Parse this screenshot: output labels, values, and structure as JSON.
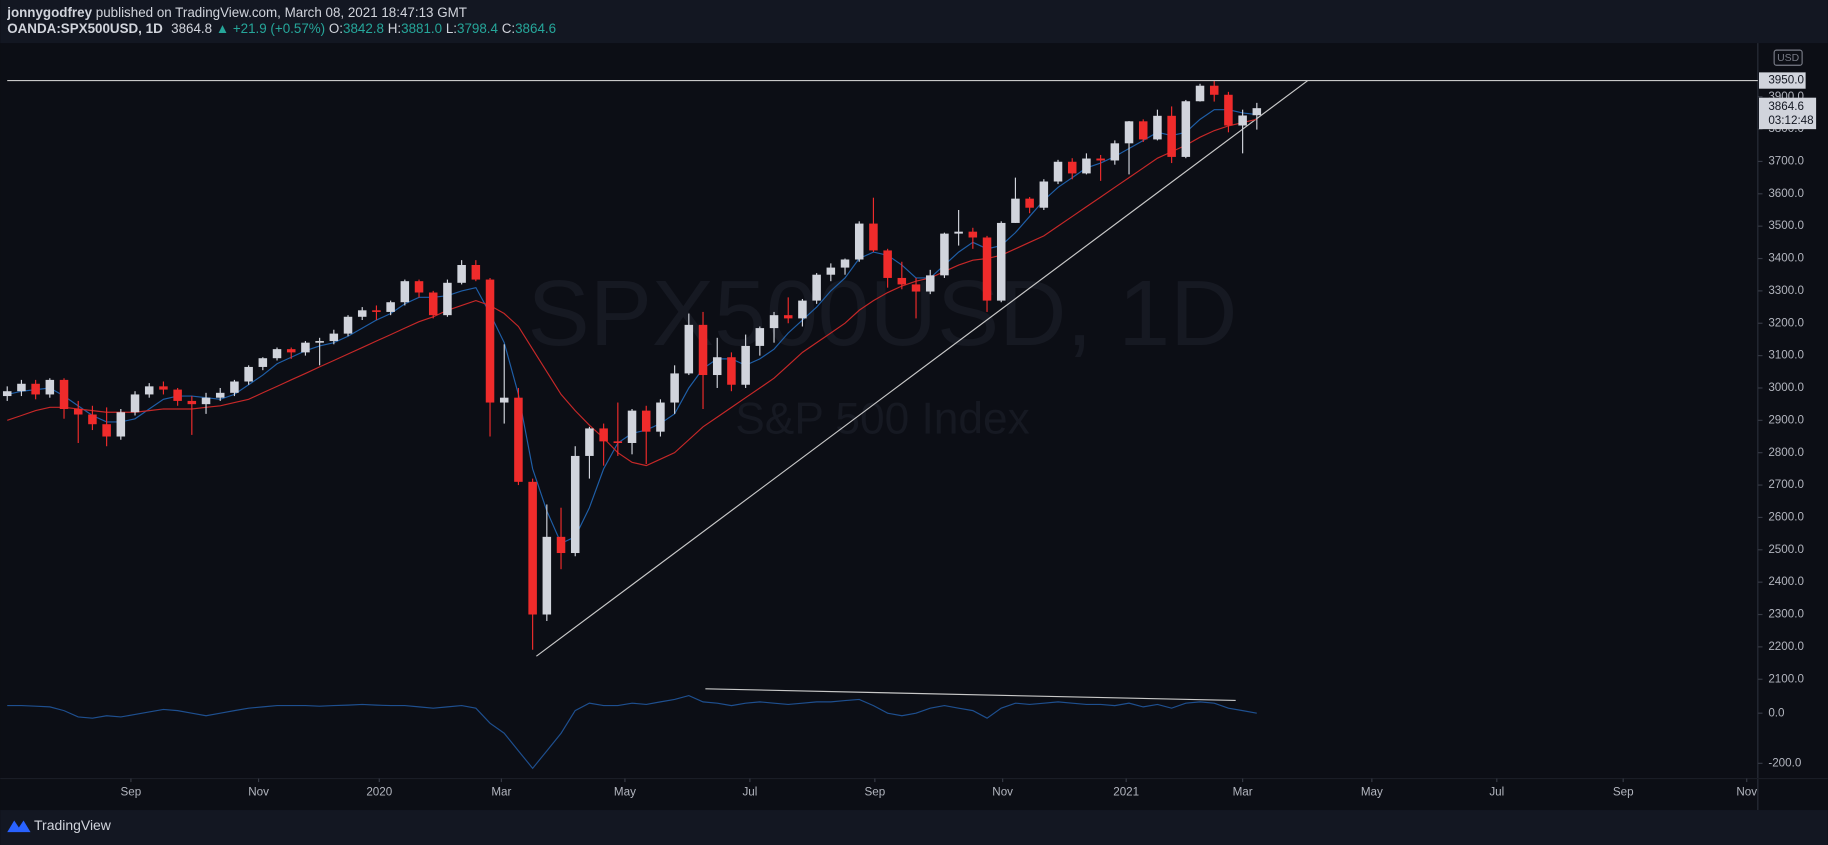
{
  "header": {
    "author": "jonnygodfrey",
    "published": "published on TradingView.com, March 08, 2021 18:47:13 GMT",
    "symbol": "OANDA:SPX500USD, 1D",
    "price": "3864.8",
    "change": "▲ +21.9 (+0.57%)",
    "o_label": "O:",
    "o": "3842.8",
    "h_label": "H:",
    "h": "3881.0",
    "l_label": "L:",
    "l": "3798.4",
    "c_label": "C:",
    "c": "3864.6"
  },
  "footer": {
    "brand": "TradingView"
  },
  "chart_data": {
    "type": "candlestick",
    "watermark": "SPX500USD, 1D",
    "watermark_subtitle": "S&P 500 Index",
    "currency": "USD",
    "countdown": "03:12:48",
    "up_color": "#d1d4dc",
    "down_color": "#ef2b2b",
    "xlim": [
      0,
      123.2
    ],
    "xticks": [
      {
        "value": 8.71,
        "label": "Sep"
      },
      {
        "value": 17.7,
        "label": "Nov"
      },
      {
        "value": 26.2,
        "label": "2020"
      },
      {
        "value": 34.8,
        "label": "Mar"
      },
      {
        "value": 43.5,
        "label": "May"
      },
      {
        "value": 52.3,
        "label": "Jul"
      },
      {
        "value": 61.1,
        "label": "Sep"
      },
      {
        "value": 70.1,
        "label": "Nov"
      },
      {
        "value": 78.8,
        "label": "2021"
      },
      {
        "value": 87.0,
        "label": "Mar"
      },
      {
        "value": 96.1,
        "label": "May"
      },
      {
        "value": 104.9,
        "label": "Jul"
      },
      {
        "value": 113.8,
        "label": "Sep"
      },
      {
        "value": 122.5,
        "label": "Nov"
      }
    ],
    "ylim": [
      2110,
      4062
    ],
    "yticks": [
      {
        "value": 2100,
        "label": "2100.0"
      },
      {
        "value": 2200,
        "label": "2200.0"
      },
      {
        "value": 2300,
        "label": "2300.0"
      },
      {
        "value": 2400,
        "label": "2400.0"
      },
      {
        "value": 2500,
        "label": "2500.0"
      },
      {
        "value": 2600,
        "label": "2600.0"
      },
      {
        "value": 2700,
        "label": "2700.0"
      },
      {
        "value": 2800,
        "label": "2800.0"
      },
      {
        "value": 2900,
        "label": "2900.0"
      },
      {
        "value": 3000,
        "label": "3000.0"
      },
      {
        "value": 3100,
        "label": "3100.0"
      },
      {
        "value": 3200,
        "label": "3200.0"
      },
      {
        "value": 3300,
        "label": "3300.0"
      },
      {
        "value": 3400,
        "label": "3400.0"
      },
      {
        "value": 3500,
        "label": "3500.0"
      },
      {
        "value": 3600,
        "label": "3600.0"
      },
      {
        "value": 3700,
        "label": "3700.0"
      },
      {
        "value": 3800,
        "label": "3800.0"
      },
      {
        "value": 3900,
        "label": "3900.0"
      }
    ],
    "y2lim": [
      -270,
      125
    ],
    "y2ticks": [
      {
        "value": 0,
        "label": "0.0"
      },
      {
        "value": -200,
        "label": "-200.0"
      }
    ],
    "hline": {
      "value": 3950,
      "label": "3950.0"
    },
    "ohlc": [
      [
        2975,
        3005,
        2960,
        2990
      ],
      [
        2990,
        3025,
        2975,
        3013
      ],
      [
        3013,
        3025,
        2965,
        2980
      ],
      [
        2980,
        3030,
        2970,
        3025
      ],
      [
        3025,
        3030,
        2905,
        2935
      ],
      [
        2935,
        2960,
        2830,
        2918
      ],
      [
        2918,
        2945,
        2870,
        2888
      ],
      [
        2888,
        2940,
        2820,
        2850
      ],
      [
        2850,
        2935,
        2840,
        2925
      ],
      [
        2925,
        2990,
        2915,
        2980
      ],
      [
        2980,
        3015,
        2970,
        3005
      ],
      [
        3005,
        3020,
        2980,
        2995
      ],
      [
        2995,
        3000,
        2945,
        2960
      ],
      [
        2960,
        2975,
        2855,
        2950
      ],
      [
        2950,
        2985,
        2920,
        2970
      ],
      [
        2970,
        3000,
        2960,
        2985
      ],
      [
        2985,
        3025,
        2975,
        3020
      ],
      [
        3020,
        3070,
        3010,
        3065
      ],
      [
        3065,
        3095,
        3055,
        3092
      ],
      [
        3092,
        3125,
        3085,
        3120
      ],
      [
        3120,
        3125,
        3090,
        3110
      ],
      [
        3110,
        3145,
        3100,
        3140
      ],
      [
        3140,
        3155,
        3070,
        3145
      ],
      [
        3145,
        3180,
        3135,
        3168
      ],
      [
        3168,
        3225,
        3160,
        3220
      ],
      [
        3220,
        3250,
        3210,
        3240
      ],
      [
        3240,
        3255,
        3210,
        3235
      ],
      [
        3235,
        3270,
        3225,
        3265
      ],
      [
        3265,
        3335,
        3255,
        3330
      ],
      [
        3330,
        3335,
        3280,
        3295
      ],
      [
        3295,
        3300,
        3215,
        3225
      ],
      [
        3225,
        3335,
        3220,
        3325
      ],
      [
        3325,
        3395,
        3320,
        3380
      ],
      [
        3380,
        3395,
        3330,
        3335
      ],
      [
        3335,
        3340,
        2850,
        2955
      ],
      [
        2955,
        3135,
        2890,
        2970
      ],
      [
        2970,
        3000,
        2700,
        2710
      ],
      [
        2710,
        2720,
        2191,
        2300
      ],
      [
        2300,
        2640,
        2280,
        2540
      ],
      [
        2540,
        2630,
        2440,
        2490
      ],
      [
        2490,
        2820,
        2480,
        2790
      ],
      [
        2790,
        2880,
        2720,
        2875
      ],
      [
        2875,
        2890,
        2760,
        2835
      ],
      [
        2835,
        2955,
        2790,
        2830
      ],
      [
        2830,
        2935,
        2795,
        2930
      ],
      [
        2930,
        2945,
        2765,
        2865
      ],
      [
        2865,
        2965,
        2850,
        2955
      ],
      [
        2955,
        3070,
        2920,
        3045
      ],
      [
        3045,
        3230,
        3040,
        3195
      ],
      [
        3195,
        3235,
        2935,
        3040
      ],
      [
        3040,
        3155,
        3000,
        3095
      ],
      [
        3095,
        3110,
        2990,
        3010
      ],
      [
        3010,
        3165,
        3000,
        3130
      ],
      [
        3130,
        3190,
        3100,
        3185
      ],
      [
        3185,
        3235,
        3140,
        3225
      ],
      [
        3225,
        3280,
        3200,
        3215
      ],
      [
        3215,
        3275,
        3190,
        3270
      ],
      [
        3270,
        3355,
        3260,
        3350
      ],
      [
        3350,
        3385,
        3330,
        3372
      ],
      [
        3372,
        3400,
        3350,
        3397
      ],
      [
        3397,
        3515,
        3390,
        3508
      ],
      [
        3508,
        3588,
        3420,
        3425
      ],
      [
        3425,
        3430,
        3310,
        3340
      ],
      [
        3340,
        3390,
        3305,
        3320
      ],
      [
        3320,
        3340,
        3215,
        3298
      ],
      [
        3298,
        3365,
        3290,
        3348
      ],
      [
        3348,
        3480,
        3340,
        3477
      ],
      [
        3477,
        3550,
        3440,
        3483
      ],
      [
        3483,
        3495,
        3430,
        3465
      ],
      [
        3465,
        3470,
        3235,
        3270
      ],
      [
        3270,
        3515,
        3265,
        3510
      ],
      [
        3510,
        3650,
        3510,
        3585
      ],
      [
        3585,
        3590,
        3540,
        3557
      ],
      [
        3557,
        3645,
        3550,
        3638
      ],
      [
        3638,
        3705,
        3630,
        3699
      ],
      [
        3699,
        3710,
        3645,
        3663
      ],
      [
        3663,
        3725,
        3660,
        3709
      ],
      [
        3709,
        3720,
        3640,
        3703
      ],
      [
        3703,
        3765,
        3690,
        3756
      ],
      [
        3756,
        3825,
        3660,
        3824
      ],
      [
        3824,
        3830,
        3760,
        3768
      ],
      [
        3768,
        3860,
        3765,
        3841
      ],
      [
        3841,
        3870,
        3695,
        3714
      ],
      [
        3714,
        3890,
        3710,
        3886
      ],
      [
        3886,
        3940,
        3885,
        3934
      ],
      [
        3934,
        3950,
        3885,
        3906
      ],
      [
        3906,
        3915,
        3790,
        3811
      ],
      [
        3811,
        3860,
        3725,
        3842
      ],
      [
        3842.8,
        3881,
        3798.4,
        3864.6
      ]
    ],
    "series": [
      {
        "color": "#1f5fa8",
        "values": [
          2980,
          2990,
          2995,
          3000,
          2975,
          2945,
          2915,
          2895,
          2895,
          2905,
          2935,
          2965,
          2975,
          2975,
          2970,
          2965,
          2980,
          3010,
          3040,
          3075,
          3095,
          3115,
          3130,
          3140,
          3160,
          3185,
          3210,
          3230,
          3260,
          3280,
          3280,
          3285,
          3300,
          3310,
          3230,
          3140,
          2980,
          2750,
          2620,
          2520,
          2540,
          2630,
          2750,
          2830,
          2860,
          2870,
          2890,
          2920,
          3000,
          3060,
          3090,
          3090,
          3070,
          3090,
          3120,
          3170,
          3210,
          3250,
          3300,
          3340,
          3400,
          3420,
          3410,
          3380,
          3340,
          3340,
          3380,
          3420,
          3450,
          3430,
          3440,
          3480,
          3530,
          3580,
          3620,
          3650,
          3680,
          3695,
          3715,
          3740,
          3765,
          3790,
          3780,
          3790,
          3830,
          3860,
          3860,
          3850,
          3845
        ]
      },
      {
        "color": "#c62828",
        "values": [
          2900,
          2915,
          2930,
          2940,
          2940,
          2935,
          2930,
          2925,
          2925,
          2925,
          2930,
          2935,
          2935,
          2935,
          2940,
          2945,
          2955,
          2965,
          2985,
          3005,
          3025,
          3045,
          3065,
          3085,
          3105,
          3125,
          3145,
          3165,
          3185,
          3205,
          3220,
          3240,
          3255,
          3270,
          3255,
          3230,
          3190,
          3120,
          3050,
          2980,
          2930,
          2885,
          2845,
          2800,
          2770,
          2760,
          2780,
          2800,
          2840,
          2880,
          2910,
          2940,
          2970,
          3000,
          3030,
          3070,
          3110,
          3140,
          3170,
          3200,
          3240,
          3270,
          3295,
          3315,
          3330,
          3340,
          3360,
          3380,
          3395,
          3400,
          3410,
          3430,
          3450,
          3470,
          3500,
          3530,
          3560,
          3590,
          3620,
          3650,
          3680,
          3710,
          3730,
          3750,
          3775,
          3795,
          3810,
          3820,
          3830
        ]
      },
      {
        "color": "#1e4f8f",
        "axis": "y2",
        "values": [
          30,
          30,
          28,
          25,
          10,
          -15,
          -20,
          -10,
          -15,
          -5,
          5,
          15,
          10,
          0,
          -10,
          0,
          10,
          20,
          25,
          30,
          30,
          30,
          28,
          30,
          32,
          35,
          32,
          30,
          30,
          25,
          20,
          25,
          30,
          20,
          -40,
          -80,
          -150,
          -220,
          -150,
          -80,
          10,
          40,
          30,
          30,
          40,
          35,
          45,
          55,
          70,
          45,
          40,
          30,
          40,
          45,
          40,
          35,
          40,
          45,
          45,
          50,
          55,
          30,
          0,
          -10,
          0,
          20,
          30,
          20,
          10,
          -20,
          20,
          40,
          35,
          40,
          45,
          40,
          35,
          35,
          30,
          40,
          25,
          35,
          20,
          40,
          45,
          40,
          20,
          10,
          0
        ]
      }
    ]
  }
}
